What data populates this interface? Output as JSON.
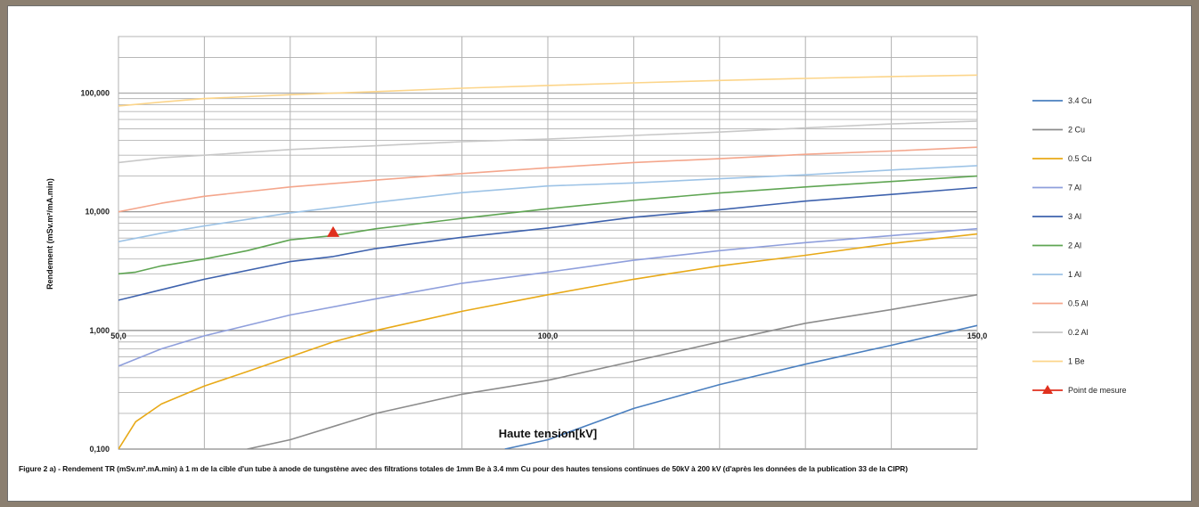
{
  "caption": "Figure 2 a) - Rendement TR (mSv.m².mA.min) à 1 m de la cible d'un tube à anode de tungstène avec des filtrations totales de 1mm Be à 3.4 mm Cu pour des hautes tensions continues de 50kV à 200 kV (d'après les données de la publication 33 de la CIPR)",
  "chart_data": {
    "type": "line",
    "title": "",
    "xlabel": "Haute tension[kV]",
    "ylabel": "Rendement (mSv.m²/mA.min)",
    "y_scale": "log",
    "ylim": [
      0.1,
      300
    ],
    "xlim": [
      50,
      150
    ],
    "x_ticks": [
      50,
      100,
      150
    ],
    "x_tick_labels": [
      "50,0",
      "100,0",
      "150,0"
    ],
    "y_ticks": [
      0.1,
      1,
      10,
      100
    ],
    "y_tick_labels": [
      "0,100",
      "1,000",
      "10,000",
      "100,000"
    ],
    "grid": true,
    "legend_position": "right",
    "series": [
      {
        "name": "3.4 Cu",
        "color": "#4a7fbf",
        "x": [
          95,
          100,
          110,
          120,
          130,
          140,
          150
        ],
        "y": [
          0.1,
          0.12,
          0.22,
          0.35,
          0.52,
          0.75,
          1.1
        ]
      },
      {
        "name": "2 Cu",
        "color": "#8c8c8c",
        "x": [
          65,
          70,
          80,
          90,
          100,
          110,
          120,
          130,
          140,
          150
        ],
        "y": [
          0.1,
          0.12,
          0.2,
          0.29,
          0.38,
          0.55,
          0.8,
          1.15,
          1.5,
          2.0
        ]
      },
      {
        "name": "0.5 Cu",
        "color": "#e8a917",
        "x": [
          50,
          52,
          55,
          60,
          65,
          70,
          75,
          80,
          90,
          100,
          110,
          120,
          130,
          140,
          150
        ],
        "y": [
          0.1,
          0.17,
          0.24,
          0.34,
          0.45,
          0.6,
          0.8,
          1.0,
          1.45,
          2.0,
          2.7,
          3.5,
          4.3,
          5.4,
          6.5
        ]
      },
      {
        "name": "7 Al",
        "color": "#8f9fdc",
        "x": [
          50,
          55,
          60,
          70,
          80,
          90,
          100,
          110,
          120,
          130,
          140,
          150
        ],
        "y": [
          0.5,
          0.7,
          0.9,
          1.35,
          1.85,
          2.5,
          3.1,
          3.9,
          4.7,
          5.5,
          6.3,
          7.2
        ]
      },
      {
        "name": "3 Al",
        "color": "#3e62ad",
        "x": [
          50,
          55,
          60,
          70,
          75,
          80,
          90,
          100,
          110,
          120,
          130,
          140,
          150
        ],
        "y": [
          1.8,
          2.2,
          2.7,
          3.8,
          4.2,
          4.9,
          6.1,
          7.3,
          9.0,
          10.4,
          12.3,
          14.0,
          16.0
        ]
      },
      {
        "name": "2 Al",
        "color": "#5fa553",
        "x": [
          50,
          52,
          55,
          60,
          65,
          70,
          75,
          80,
          90,
          100,
          110,
          120,
          130,
          140,
          150
        ],
        "y": [
          3.0,
          3.1,
          3.5,
          4.0,
          4.7,
          5.8,
          6.3,
          7.2,
          8.8,
          10.6,
          12.5,
          14.4,
          16.2,
          18.0,
          20.0
        ]
      },
      {
        "name": "1 Al",
        "color": "#9dc3e6",
        "x": [
          50,
          55,
          60,
          70,
          80,
          90,
          100,
          110,
          120,
          130,
          140,
          150
        ],
        "y": [
          5.6,
          6.6,
          7.6,
          9.8,
          12.0,
          14.5,
          16.5,
          17.5,
          19.0,
          20.5,
          22.5,
          24.5
        ]
      },
      {
        "name": "0.5 Al",
        "color": "#f4a68c",
        "x": [
          50,
          55,
          60,
          70,
          80,
          90,
          100,
          110,
          120,
          130,
          140,
          150
        ],
        "y": [
          10.0,
          11.8,
          13.5,
          16.2,
          18.5,
          21.0,
          23.5,
          26.0,
          28.0,
          30.5,
          32.5,
          35.0
        ]
      },
      {
        "name": "0.2 Al",
        "color": "#c8c8c8",
        "x": [
          50,
          55,
          60,
          70,
          80,
          90,
          100,
          110,
          120,
          130,
          140,
          150
        ],
        "y": [
          26.0,
          28.5,
          30.0,
          33.5,
          36.0,
          39.0,
          41.0,
          44.0,
          47.0,
          51.0,
          55.0,
          58.0
        ]
      },
      {
        "name": "1 Be",
        "color": "#fcd58a",
        "x": [
          50,
          55,
          60,
          70,
          80,
          90,
          100,
          110,
          120,
          130,
          140,
          150
        ],
        "y": [
          78.0,
          84.0,
          90.0,
          97.0,
          103.0,
          110.0,
          116.0,
          122.0,
          128.0,
          133.0,
          138.0,
          142.0
        ]
      }
    ],
    "markers": [
      {
        "name": "Point de mesure",
        "color": "#e0301e",
        "shape": "triangle",
        "x": [
          75
        ],
        "y": [
          6.7
        ]
      }
    ]
  }
}
